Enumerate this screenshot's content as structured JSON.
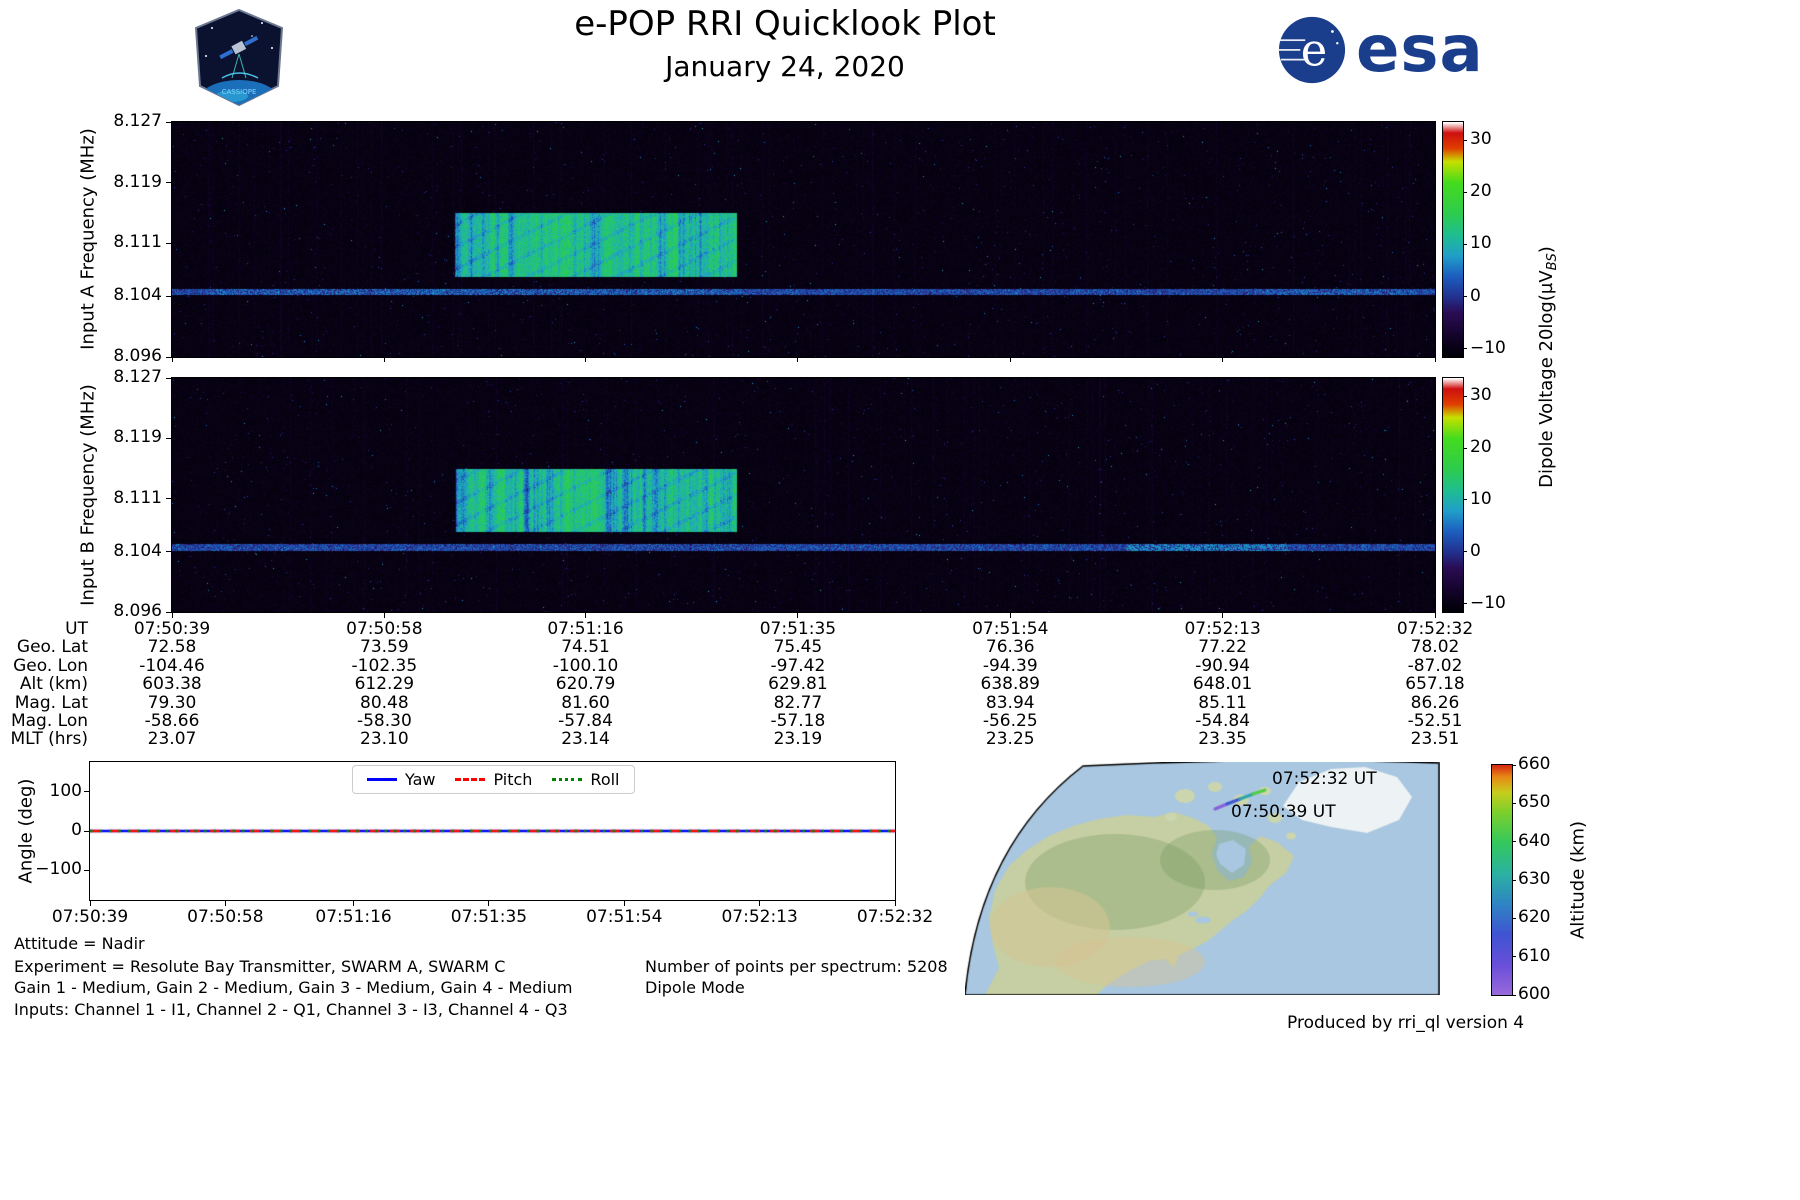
{
  "header": {
    "title": "e-POP RRI Quicklook Plot",
    "date": "January 24, 2020",
    "patch_text": "CASSIOPE",
    "esa_text": "esa"
  },
  "spectrograms": {
    "panel_a_ylabel": "Input A Frequency (MHz)",
    "panel_b_ylabel": "Input B Frequency (MHz)",
    "yticks": [
      "8.127",
      "8.119",
      "8.111",
      "8.104",
      "8.096"
    ],
    "colorbar": {
      "label_prefix": "Dipole Voltage 20log(µV",
      "label_sub": "BS",
      "label_suffix": ")",
      "ticks": [
        "30",
        "20",
        "10",
        "0",
        "−10"
      ]
    }
  },
  "ephemeris": {
    "rows": [
      {
        "label": "UT",
        "values": [
          "07:50:39",
          "07:50:58",
          "07:51:16",
          "07:51:35",
          "07:51:54",
          "07:52:13",
          "07:52:32"
        ]
      },
      {
        "label": "Geo. Lat",
        "values": [
          "72.58",
          "73.59",
          "74.51",
          "75.45",
          "76.36",
          "77.22",
          "78.02"
        ]
      },
      {
        "label": "Geo. Lon",
        "values": [
          "-104.46",
          "-102.35",
          "-100.10",
          "-97.42",
          "-94.39",
          "-90.94",
          "-87.02"
        ]
      },
      {
        "label": "Alt (km)",
        "values": [
          "603.38",
          "612.29",
          "620.79",
          "629.81",
          "638.89",
          "648.01",
          "657.18"
        ]
      },
      {
        "label": "Mag. Lat",
        "values": [
          "79.30",
          "80.48",
          "81.60",
          "82.77",
          "83.94",
          "85.11",
          "86.26"
        ]
      },
      {
        "label": "Mag. Lon",
        "values": [
          "-58.66",
          "-58.30",
          "-57.84",
          "-57.18",
          "-56.25",
          "-54.84",
          "-52.51"
        ]
      },
      {
        "label": "MLT (hrs)",
        "values": [
          "23.07",
          "23.10",
          "23.14",
          "23.19",
          "23.25",
          "23.35",
          "23.51"
        ]
      }
    ]
  },
  "angle_plot": {
    "ylabel": "Angle (deg)",
    "yticks": [
      "100",
      "0",
      "−100"
    ],
    "xticks": [
      "07:50:39",
      "07:50:58",
      "07:51:16",
      "07:51:35",
      "07:51:54",
      "07:52:13",
      "07:52:32"
    ],
    "legend": [
      {
        "label": "Yaw",
        "color": "#0000ff",
        "style": "solid"
      },
      {
        "label": "Pitch",
        "color": "#ff0000",
        "style": "dashed"
      },
      {
        "label": "Roll",
        "color": "#007f00",
        "style": "dotted"
      }
    ]
  },
  "annotations": {
    "attitude": "Attitude = Nadir",
    "experiment": "Experiment = Resolute Bay Transmitter, SWARM A, SWARM C",
    "gains": "Gain 1 - Medium, Gain 2 - Medium, Gain 3 - Medium, Gain 4 - Medium",
    "inputs": "Inputs: Channel 1 - I1, Channel 2 - Q1, Channel 3 - I3, Channel 4 - Q3",
    "points": "Number of points per spectrum: 5208",
    "mode": "Dipole Mode"
  },
  "map": {
    "start_label": "07:50:39 UT",
    "end_label": "07:52:32 UT",
    "colorbar_label": "Altitude (km)",
    "colorbar_ticks": [
      "660",
      "650",
      "640",
      "630",
      "620",
      "610",
      "600"
    ]
  },
  "footer": {
    "produced_by": "Produced by rri_ql version 4"
  },
  "chart_data": [
    {
      "id": "spectrogram_input_a",
      "type": "heatmap",
      "ylabel": "Input A Frequency (MHz)",
      "x_start": "07:50:39",
      "x_end": "07:52:32",
      "x_ticks": [
        "07:50:39",
        "07:50:58",
        "07:51:16",
        "07:51:35",
        "07:51:54",
        "07:52:13",
        "07:52:32"
      ],
      "y_range_mhz": [
        8.096,
        8.127
      ],
      "y_ticks_mhz": [
        8.096,
        8.104,
        8.111,
        8.119,
        8.127
      ],
      "colorbar": {
        "label": "Dipole Voltage 20log(µVBS)",
        "ticks": [
          -10,
          0,
          10,
          20,
          30
        ],
        "range": [
          -11.6,
          33.5
        ]
      },
      "features": {
        "background_level_db": -10,
        "carrier_line": {
          "freq_mhz": 8.1046,
          "extent": "entire interval",
          "level_db": [
            0,
            6
          ]
        },
        "transmit_burst": {
          "t_start": "07:51:04",
          "t_end": "07:51:29",
          "freq_range_mhz": [
            8.107,
            8.115
          ],
          "level_db": [
            5,
            18
          ],
          "pattern": "vertical striped pulses with gaps"
        }
      },
      "colormap_stops": [
        [
          -11.6,
          "#000004"
        ],
        [
          -7,
          "#16052f"
        ],
        [
          -3,
          "#2b0d55"
        ],
        [
          0,
          "#23318f"
        ],
        [
          4,
          "#1d5fc0"
        ],
        [
          8,
          "#21a0c9"
        ],
        [
          12,
          "#1fbf8f"
        ],
        [
          16,
          "#2ecc4e"
        ],
        [
          22,
          "#46dc1e"
        ],
        [
          26,
          "#c8e000"
        ],
        [
          28.5,
          "#e04000"
        ],
        [
          31.5,
          "#cf1010"
        ],
        [
          33.5,
          "#ffffff"
        ]
      ]
    },
    {
      "id": "spectrogram_input_b",
      "type": "heatmap",
      "ylabel": "Input B Frequency (MHz)",
      "same_axes_and_colormap_as": "spectrogram_input_a",
      "features": {
        "background_level_db": -10,
        "carrier_line": {
          "freq_mhz": 8.1046,
          "extent": "entire interval",
          "level_db": [
            0,
            6
          ]
        },
        "transmit_burst": {
          "t_start": "07:51:04",
          "t_end": "07:51:29",
          "freq_range_mhz": [
            8.107,
            8.115
          ],
          "level_db": [
            5,
            18
          ]
        },
        "carrier_bright_segment": {
          "t_start": "07:52:04",
          "t_end": "07:52:19",
          "level_db": [
            4,
            10
          ]
        }
      }
    },
    {
      "id": "attitude_angles",
      "type": "line",
      "ylabel": "Angle (deg)",
      "ylim": [
        -175,
        175
      ],
      "yticks": [
        -100,
        0,
        100
      ],
      "x_ticks": [
        "07:50:39",
        "07:50:58",
        "07:51:16",
        "07:51:35",
        "07:51:54",
        "07:52:13",
        "07:52:32"
      ],
      "legend_position": "top center",
      "series": [
        {
          "name": "Yaw",
          "color": "#0000ff",
          "style": "solid",
          "values": [
            0,
            0,
            0,
            0,
            0,
            0,
            0
          ]
        },
        {
          "name": "Pitch",
          "color": "#ff0000",
          "style": "dashed",
          "values": [
            0,
            0,
            0,
            0,
            0,
            0,
            0
          ]
        },
        {
          "name": "Roll",
          "color": "#007f00",
          "style": "dotted",
          "values": [
            0,
            0,
            0,
            0,
            0,
            0,
            0
          ]
        }
      ]
    },
    {
      "id": "ground_track_map",
      "type": "scatter",
      "region": "North America, conic projection with curved left boundary",
      "track": {
        "colored_by": "Altitude (km)",
        "start": {
          "ut": "07:50:39",
          "geo_lat": 72.58,
          "geo_lon": -104.46,
          "alt_km": 603.38
        },
        "end": {
          "ut": "07:52:32",
          "geo_lat": 78.02,
          "geo_lon": -87.02,
          "alt_km": 657.18
        }
      },
      "colorbar": {
        "label": "Altitude (km)",
        "ticks": [
          600,
          610,
          620,
          630,
          640,
          650,
          660
        ],
        "range": [
          600,
          660
        ]
      },
      "altitude_colormap_stops": [
        [
          600,
          "#9a6bdb"
        ],
        [
          608,
          "#6a4fd9"
        ],
        [
          616,
          "#3f55d2"
        ],
        [
          624,
          "#2f86c4"
        ],
        [
          632,
          "#2bb3a1"
        ],
        [
          640,
          "#35c95c"
        ],
        [
          648,
          "#7fd02c"
        ],
        [
          653,
          "#c8cd1e"
        ],
        [
          657,
          "#e88a16"
        ],
        [
          660,
          "#d62b10"
        ]
      ]
    },
    {
      "id": "ephemeris_table",
      "type": "table",
      "row_labels": [
        "UT",
        "Geo. Lat",
        "Geo. Lon",
        "Alt (km)",
        "Mag. Lat",
        "Mag. Lon",
        "MLT (hrs)"
      ],
      "columns": [
        [
          "07:50:39",
          72.58,
          -104.46,
          603.38,
          79.3,
          -58.66,
          23.07
        ],
        [
          "07:50:58",
          73.59,
          -102.35,
          612.29,
          80.48,
          -58.3,
          23.1
        ],
        [
          "07:51:16",
          74.51,
          -100.1,
          620.79,
          81.6,
          -57.84,
          23.14
        ],
        [
          "07:51:35",
          75.45,
          -97.42,
          629.81,
          82.77,
          -57.18,
          23.19
        ],
        [
          "07:51:54",
          76.36,
          -94.39,
          638.89,
          83.94,
          -56.25,
          23.25
        ],
        [
          "07:52:13",
          77.22,
          -90.94,
          648.01,
          85.11,
          -54.84,
          23.35
        ],
        [
          "07:52:32",
          78.02,
          -87.02,
          657.18,
          86.26,
          -52.51,
          23.51
        ]
      ]
    }
  ]
}
